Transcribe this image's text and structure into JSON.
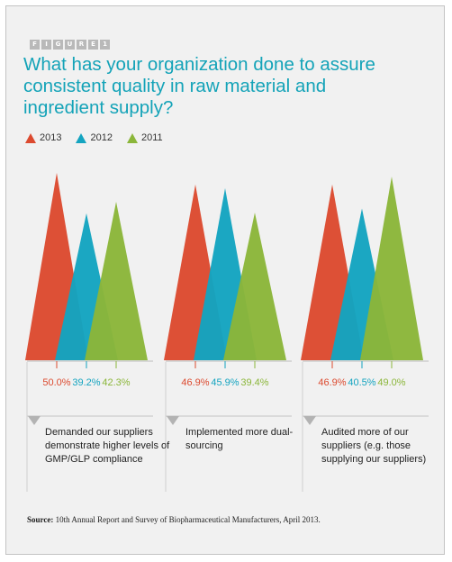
{
  "figure_label": [
    "F",
    "I",
    "G",
    "U",
    "R",
    "E",
    "1"
  ],
  "source": {
    "label": "Source:",
    "text": "10th Annual Report and Survey of Biopharmaceutical Manufacturers, April 2013."
  },
  "chart_data": {
    "type": "bar",
    "title": "What has your organization done to assure consistent quality in raw material and ingredient supply?",
    "categories": [
      "Demanded our suppliers demonstrate higher levels of GMP/GLP compliance",
      "Implemented more dual-sourcing",
      "Audited more of our suppliers (e.g. those supplying our suppliers)"
    ],
    "series": [
      {
        "name": "2013",
        "color": "#dc4a2f",
        "values": [
          50.0,
          46.9,
          46.9
        ],
        "labels": [
          "50.0%",
          "46.9%",
          "46.9%"
        ]
      },
      {
        "name": "2012",
        "color": "#14a4c0",
        "values": [
          39.2,
          45.9,
          40.5
        ],
        "labels": [
          "39.2%",
          "45.9%",
          "40.5%"
        ]
      },
      {
        "name": "2011",
        "color": "#8bb63a",
        "values": [
          42.3,
          39.4,
          49.0
        ],
        "labels": [
          "42.3%",
          "39.4%",
          "49.0%"
        ]
      }
    ],
    "ylim": [
      0,
      50
    ],
    "legend_position": "top-left",
    "grid": false
  }
}
